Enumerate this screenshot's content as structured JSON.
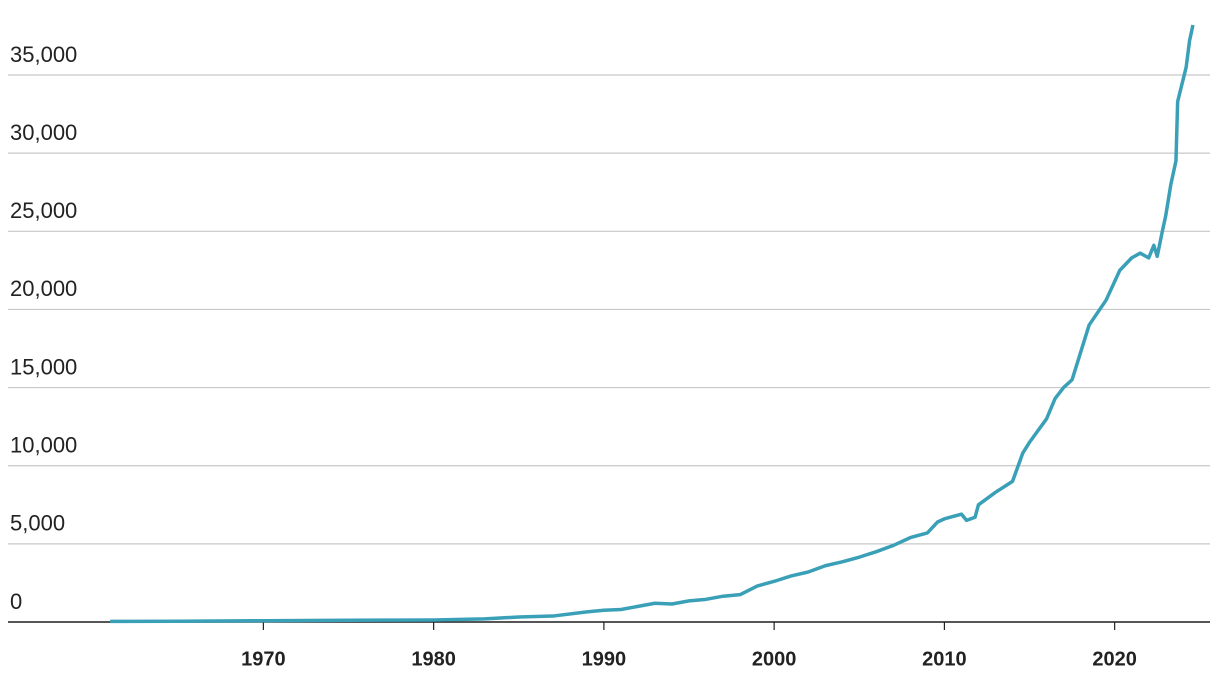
{
  "chart_data": {
    "type": "line",
    "x": [
      1961,
      1965,
      1970,
      1975,
      1980,
      1983,
      1985,
      1987,
      1989,
      1990,
      1991,
      1992,
      1993,
      1994,
      1995,
      1996,
      1997,
      1998,
      1999,
      2000,
      2001,
      2002,
      2003,
      2004,
      2005,
      2006,
      2007,
      2008,
      2009,
      2009.6,
      2010,
      2011,
      2011.3,
      2011.8,
      2012,
      2013,
      2014,
      2014.6,
      2015,
      2016,
      2016.5,
      2017,
      2017.5,
      2018.5,
      2019.5,
      2020.3,
      2021,
      2021.5,
      2022,
      2022.3,
      2022.5,
      2022.8,
      2023,
      2023.3,
      2023.6,
      2023.7,
      2024.2,
      2024.4,
      2024.6
    ],
    "series": [
      {
        "color": "#3aa0b8",
        "values": [
          40,
          50,
          80,
          110,
          130,
          200,
          320,
          380,
          650,
          750,
          800,
          1000,
          1200,
          1150,
          1350,
          1450,
          1650,
          1750,
          2300,
          2600,
          2950,
          3200,
          3600,
          3850,
          4150,
          4500,
          4900,
          5400,
          5700,
          6400,
          6600,
          6900,
          6500,
          6700,
          7500,
          8300,
          9000,
          10800,
          11500,
          13000,
          14300,
          15000,
          15500,
          19000,
          20600,
          22500,
          23300,
          23600,
          23300,
          24100,
          23400,
          25000,
          26000,
          28000,
          29500,
          33300,
          35500,
          37200,
          38200
        ]
      }
    ],
    "xlim": [
      1955,
      2025.6
    ],
    "xticks": [
      1970,
      1980,
      1990,
      2000,
      2010,
      2020
    ],
    "ylim": [
      0,
      39000
    ],
    "yticks": [
      0,
      {
        "value": 5000,
        "label": "5,000"
      },
      {
        "value": 10000,
        "label": "10,000"
      },
      {
        "value": 15000,
        "label": "15,000"
      },
      {
        "value": 20000,
        "label": "20,000"
      },
      {
        "value": 25000,
        "label": "25,000"
      },
      {
        "value": 30000,
        "label": "30,000"
      },
      {
        "value": 35000,
        "label": "35,000"
      }
    ],
    "grid": true
  }
}
